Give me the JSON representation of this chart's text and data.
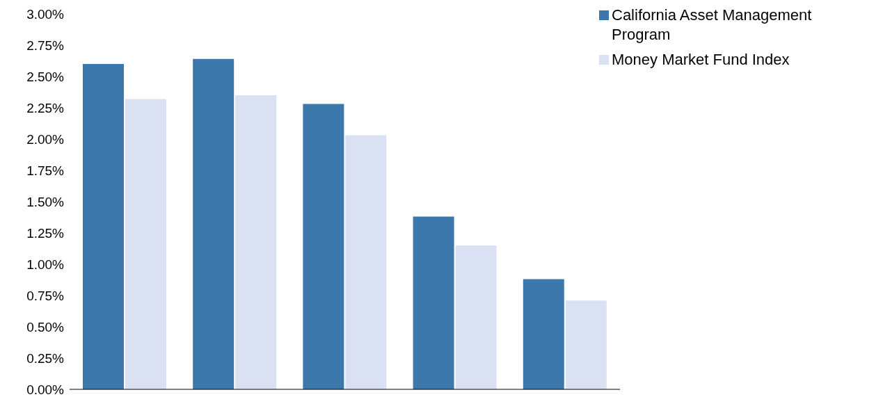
{
  "chart_data": {
    "type": "bar",
    "categories": [
      null,
      null,
      null,
      null,
      null
    ],
    "series": [
      {
        "name": "California Asset Management Program",
        "color": "#3c78ab",
        "values": [
          2.6,
          2.64,
          2.28,
          1.38,
          0.88
        ]
      },
      {
        "name": "Money Market Fund Index",
        "color": "#d9e1f2",
        "values": [
          2.32,
          2.35,
          2.03,
          1.15,
          0.71
        ]
      }
    ],
    "ylim": [
      0,
      3
    ],
    "yticks": [
      {
        "value": 0,
        "label": "0.00%"
      },
      {
        "value": 0.25,
        "label": "0.25%"
      },
      {
        "value": 0.5,
        "label": "0.50%"
      },
      {
        "value": 0.75,
        "label": "0.75%"
      },
      {
        "value": 1,
        "label": "1.00%"
      },
      {
        "value": 1.25,
        "label": "1.25%"
      },
      {
        "value": 1.5,
        "label": "1.50%"
      },
      {
        "value": 1.75,
        "label": "1.75%"
      },
      {
        "value": 2,
        "label": "2.00%"
      },
      {
        "value": 2.25,
        "label": "2.25%"
      },
      {
        "value": 2.5,
        "label": "2.50%"
      },
      {
        "value": 2.75,
        "label": "2.75%"
      },
      {
        "value": 3,
        "label": "3.00%"
      }
    ],
    "grid": false,
    "legend": "top right"
  }
}
